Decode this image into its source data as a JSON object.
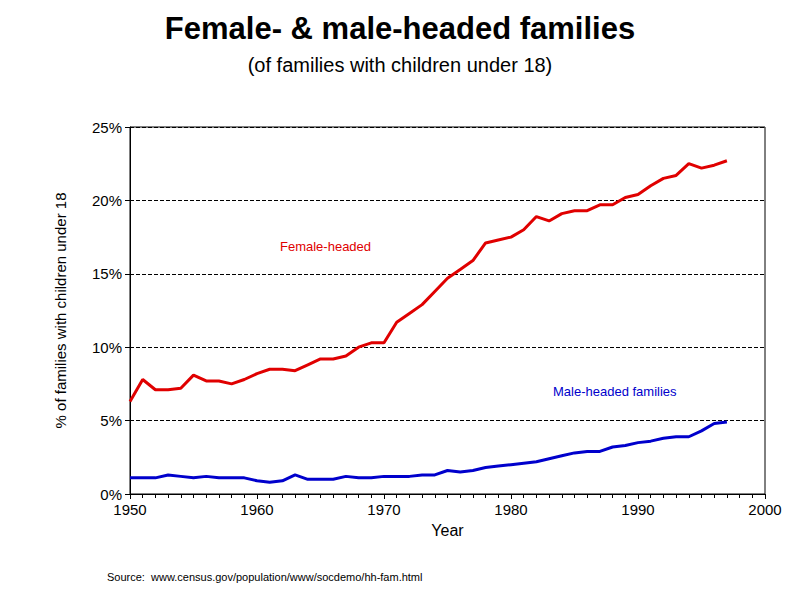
{
  "chart_data": {
    "type": "line",
    "title": "Female- & male-headed families",
    "subtitle": "(of families with children under 18)",
    "x_label": "Year",
    "y_label": "% of families with children under 18",
    "source": "Source:  www.census.gov/population/www/socdemo/hh-fam.html",
    "x": [
      1950,
      1951,
      1952,
      1953,
      1954,
      1955,
      1956,
      1957,
      1958,
      1959,
      1960,
      1961,
      1962,
      1963,
      1964,
      1965,
      1966,
      1967,
      1968,
      1969,
      1970,
      1971,
      1972,
      1973,
      1974,
      1975,
      1976,
      1977,
      1978,
      1979,
      1980,
      1981,
      1982,
      1983,
      1984,
      1985,
      1986,
      1987,
      1988,
      1989,
      1990,
      1991,
      1992,
      1993,
      1994,
      1995,
      1996,
      1997
    ],
    "series": [
      {
        "name": "Female-headed",
        "color": "#e00000",
        "line_style": "solid",
        "values": [
          6.3,
          7.8,
          7.1,
          7.1,
          7.2,
          8.1,
          7.7,
          7.7,
          7.5,
          7.8,
          8.2,
          8.5,
          8.5,
          8.4,
          8.8,
          9.2,
          9.2,
          9.4,
          10.0,
          10.3,
          10.3,
          11.7,
          12.3,
          12.9,
          13.8,
          14.7,
          15.3,
          15.9,
          17.1,
          17.3,
          17.5,
          18.0,
          18.9,
          18.6,
          19.1,
          19.3,
          19.3,
          19.7,
          19.7,
          20.2,
          20.4,
          21.0,
          21.5,
          21.7,
          22.5,
          22.2,
          22.4,
          22.7
        ]
      },
      {
        "name": "Male-headed families",
        "color": "#0000cc",
        "line_style": "solid",
        "values": [
          1.1,
          1.1,
          1.1,
          1.3,
          1.2,
          1.1,
          1.2,
          1.1,
          1.1,
          1.1,
          0.9,
          0.8,
          0.9,
          1.3,
          1.0,
          1.0,
          1.0,
          1.2,
          1.1,
          1.1,
          1.2,
          1.2,
          1.2,
          1.3,
          1.3,
          1.6,
          1.5,
          1.6,
          1.8,
          1.9,
          2.0,
          2.1,
          2.2,
          2.4,
          2.6,
          2.8,
          2.9,
          2.9,
          3.2,
          3.3,
          3.5,
          3.6,
          3.8,
          3.9,
          3.9,
          4.3,
          4.8,
          4.9
        ]
      }
    ],
    "xlim": [
      1950,
      2000
    ],
    "xticks": [
      1950,
      1960,
      1970,
      1980,
      1990,
      2000
    ],
    "ylim": [
      0,
      25
    ],
    "yticks": [
      {
        "value": 0,
        "label": "0%"
      },
      {
        "value": 5,
        "label": "5%"
      },
      {
        "value": 10,
        "label": "10%"
      },
      {
        "value": 15,
        "label": "15%"
      },
      {
        "value": 20,
        "label": "20%"
      },
      {
        "value": 25,
        "label": "25%"
      }
    ],
    "grid": true
  }
}
